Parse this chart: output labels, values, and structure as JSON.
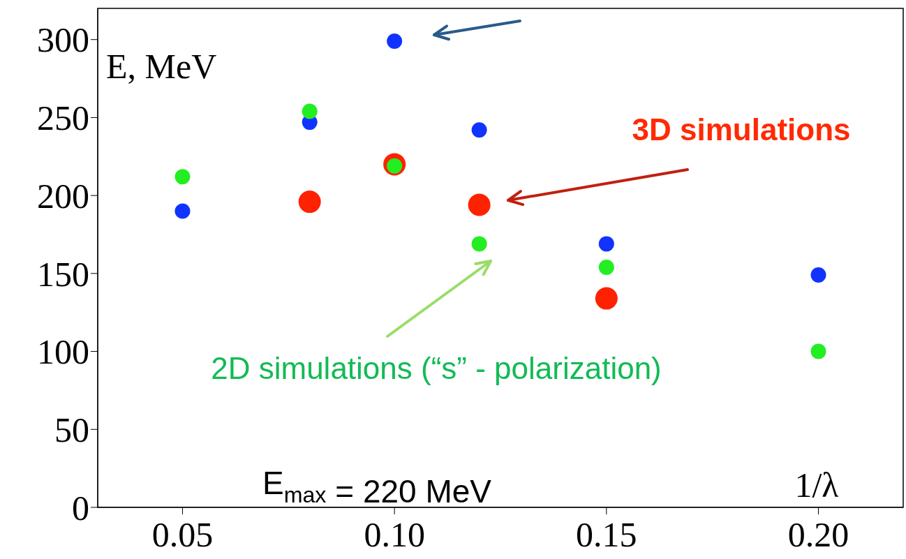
{
  "chart_data": {
    "type": "scatter",
    "xlabel": "1/λ",
    "ylabel": "E, MeV",
    "marker": "circle",
    "xlim": [
      0.03,
      0.22
    ],
    "ylim": [
      0,
      320
    ],
    "xticks": [
      0.05,
      {
        "value": 0.1,
        "label": "0.10"
      },
      0.15,
      {
        "value": 0.2,
        "label": "0.20"
      }
    ],
    "yticks": [
      0,
      50,
      100,
      150,
      200,
      250,
      300
    ],
    "series": [
      {
        "color": "#ff2200",
        "x": [
          0.08,
          0.1,
          0.12,
          0.15
        ],
        "values": [
          196,
          220,
          194,
          134
        ]
      },
      {
        "color": "#1133ff",
        "x": [
          0.05,
          0.08,
          0.1,
          0.12,
          0.15,
          0.2
        ],
        "values": [
          190,
          247,
          299,
          242,
          169,
          149
        ]
      },
      {
        "color": "#22ee22",
        "x": [
          0.05,
          0.08,
          0.1,
          0.12,
          0.15,
          0.2
        ],
        "values": [
          212,
          254,
          219,
          169,
          154,
          100
        ]
      }
    ],
    "annotations": [
      "3D simulations",
      "2D simulations (“s” - polarization)",
      "E$_{max}$ = 220 MeV"
    ]
  }
}
